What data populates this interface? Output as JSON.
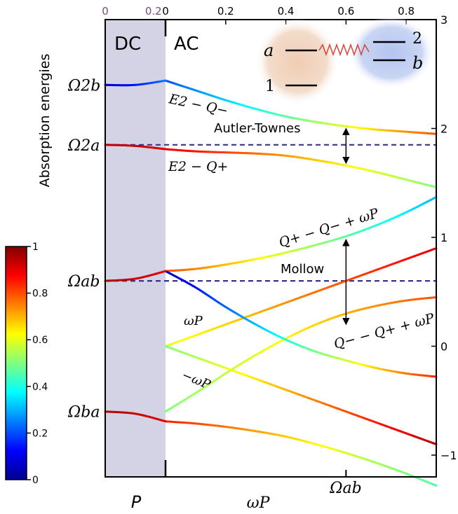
{
  "chart_data": {
    "type": "line",
    "ylabel": "Absorption energies",
    "dc_panel": {
      "title": "DC",
      "xlabel": "P",
      "x_ticks": [
        "0",
        "0.2"
      ],
      "x_tick_color": "#7b4a7d",
      "shade_color": "#d4d3e6"
    },
    "ac_panel": {
      "title": "AC",
      "xlabel": "ωP",
      "x_ticks": [
        0,
        0.2,
        0.4,
        0.6,
        0.8
      ],
      "xlim": [
        0,
        0.9
      ],
      "y_ticks": [
        -1,
        0,
        1,
        2,
        3
      ],
      "ylim": [
        -1.2,
        3
      ],
      "x_marker": {
        "x": 0.6,
        "label": "Ωab"
      }
    },
    "left_y_labels": [
      {
        "label": "Ω2b",
        "y": 2.4
      },
      {
        "label": "Ω2a",
        "y": 1.85
      },
      {
        "label": "Ωab",
        "y": 0.6
      },
      {
        "label": "Ωba",
        "y": -0.6
      }
    ],
    "reference_lines": [
      {
        "name": "Autler-Townes",
        "y": 1.85,
        "style": "dashed",
        "color": "#35348a"
      },
      {
        "name": "Mollow",
        "y": 0.6,
        "style": "dashed",
        "color": "#35348a"
      }
    ],
    "splittings": [
      {
        "label": "Autler-Townes",
        "x": 0.6,
        "y_from": 2.0,
        "y_to": 1.68
      },
      {
        "label": "Mollow",
        "x": 0.6,
        "y_from": 0.98,
        "y_to": 0.2
      }
    ],
    "series": [
      {
        "name": "E2 − Q−",
        "color_from": 0.2,
        "color_to": 0.8,
        "points": [
          [
            0,
            2.44
          ],
          [
            0.1,
            2.35
          ],
          [
            0.2,
            2.26
          ],
          [
            0.3,
            2.18
          ],
          [
            0.4,
            2.11
          ],
          [
            0.5,
            2.06
          ],
          [
            0.6,
            2.02
          ],
          [
            0.7,
            1.99
          ],
          [
            0.8,
            1.97
          ],
          [
            0.9,
            1.95
          ]
        ]
      },
      {
        "name": "E2 − Q+",
        "color_from": 0.9,
        "color_to": 0.5,
        "points": [
          [
            0,
            1.81
          ],
          [
            0.1,
            1.79
          ],
          [
            0.2,
            1.78
          ],
          [
            0.3,
            1.77
          ],
          [
            0.4,
            1.75
          ],
          [
            0.5,
            1.71
          ],
          [
            0.6,
            1.66
          ],
          [
            0.7,
            1.6
          ],
          [
            0.8,
            1.53
          ],
          [
            0.9,
            1.46
          ]
        ]
      },
      {
        "name": "Q+ − Q− + ωP",
        "color_from": 0.8,
        "color_to": 0.3,
        "points": [
          [
            0,
            0.69
          ],
          [
            0.1,
            0.71
          ],
          [
            0.2,
            0.75
          ],
          [
            0.3,
            0.8
          ],
          [
            0.4,
            0.86
          ],
          [
            0.5,
            0.93
          ],
          [
            0.6,
            1.01
          ],
          [
            0.7,
            1.11
          ],
          [
            0.8,
            1.23
          ],
          [
            0.9,
            1.37
          ]
        ]
      },
      {
        "name": "",
        "color_from": 0.6,
        "color_to": 0.9,
        "points": [
          [
            0,
            0
          ],
          [
            0.1,
            0.1
          ],
          [
            0.2,
            0.2
          ],
          [
            0.3,
            0.3
          ],
          [
            0.4,
            0.4
          ],
          [
            0.5,
            0.5
          ],
          [
            0.6,
            0.6
          ],
          [
            0.7,
            0.7
          ],
          [
            0.8,
            0.8
          ],
          [
            0.9,
            0.9
          ]
        ]
      },
      {
        "name": "Q− − Q+ + ωP",
        "color_from": 0.5,
        "color_to": 0.8,
        "points": [
          [
            0,
            -0.6
          ],
          [
            0.1,
            -0.43
          ],
          [
            0.2,
            -0.25
          ],
          [
            0.3,
            -0.08
          ],
          [
            0.4,
            0.07
          ],
          [
            0.5,
            0.2
          ],
          [
            0.6,
            0.3
          ],
          [
            0.7,
            0.37
          ],
          [
            0.8,
            0.42
          ],
          [
            0.9,
            0.45
          ]
        ]
      },
      {
        "name": "",
        "color_from": 0.05,
        "color_to": 0.85,
        "points": [
          [
            0,
            0.69
          ],
          [
            0.1,
            0.54
          ],
          [
            0.2,
            0.36
          ],
          [
            0.3,
            0.2
          ],
          [
            0.4,
            0.06
          ],
          [
            0.5,
            -0.05
          ],
          [
            0.6,
            -0.13
          ],
          [
            0.7,
            -0.2
          ],
          [
            0.8,
            -0.25
          ],
          [
            0.9,
            -0.28
          ]
        ]
      },
      {
        "name": "",
        "color_from": 0.5,
        "color_to": 0.95,
        "points": [
          [
            0,
            0
          ],
          [
            0.1,
            -0.1
          ],
          [
            0.2,
            -0.2
          ],
          [
            0.3,
            -0.3
          ],
          [
            0.4,
            -0.4
          ],
          [
            0.5,
            -0.5
          ],
          [
            0.6,
            -0.6
          ],
          [
            0.7,
            -0.7
          ],
          [
            0.8,
            -0.8
          ],
          [
            0.9,
            -0.9
          ]
        ]
      },
      {
        "name": "",
        "color_from": 0.85,
        "color_to": 0.45,
        "points": [
          [
            0,
            -0.69
          ],
          [
            0.1,
            -0.71
          ],
          [
            0.2,
            -0.74
          ],
          [
            0.3,
            -0.78
          ],
          [
            0.4,
            -0.83
          ],
          [
            0.5,
            -0.9
          ],
          [
            0.6,
            -0.98
          ],
          [
            0.7,
            -1.07
          ],
          [
            0.8,
            -1.17
          ],
          [
            0.9,
            -1.28
          ]
        ]
      }
    ],
    "dc_series": [
      {
        "color_from": 0.05,
        "color_to": 0.25,
        "points": [
          [
            0,
            2.4
          ],
          [
            0.5,
            2.4
          ],
          [
            1,
            2.44
          ]
        ]
      },
      {
        "color_from": 0.95,
        "color_to": 0.9,
        "points": [
          [
            0,
            1.85
          ],
          [
            0.5,
            1.84
          ],
          [
            1,
            1.81
          ]
        ]
      },
      {
        "color_from": 0.95,
        "color_to": 0.9,
        "points": [
          [
            0,
            0.6
          ],
          [
            0.5,
            0.62
          ],
          [
            1,
            0.69
          ]
        ]
      },
      {
        "color_from": 0.95,
        "color_to": 0.9,
        "points": [
          [
            0,
            -0.6
          ],
          [
            0.5,
            -0.62
          ],
          [
            1,
            -0.69
          ]
        ]
      }
    ],
    "annotations": {
      "e2_qminus": "E2 − Q−",
      "e2_qplus": "E2 − Q+",
      "qplus_qminus": "Q+ − Q− + ωP",
      "qminus_qplus": "Q− − Q+ + ωP",
      "omega_p": "ωP",
      "minus_omega_p": "−ωP",
      "autler_townes": "Autler-Townes",
      "mollow": "Mollow"
    },
    "inset": {
      "level_a": "a",
      "level_1": "1",
      "level_2": "2",
      "level_b": "b",
      "left_blob_color": "#f1d7c4",
      "right_blob_color": "#c7d3f1"
    },
    "colorbar": {
      "ticks": [
        0,
        0.2,
        0.4,
        0.6,
        0.8,
        1
      ],
      "range": [
        0,
        1
      ],
      "colormap": "jet"
    }
  }
}
